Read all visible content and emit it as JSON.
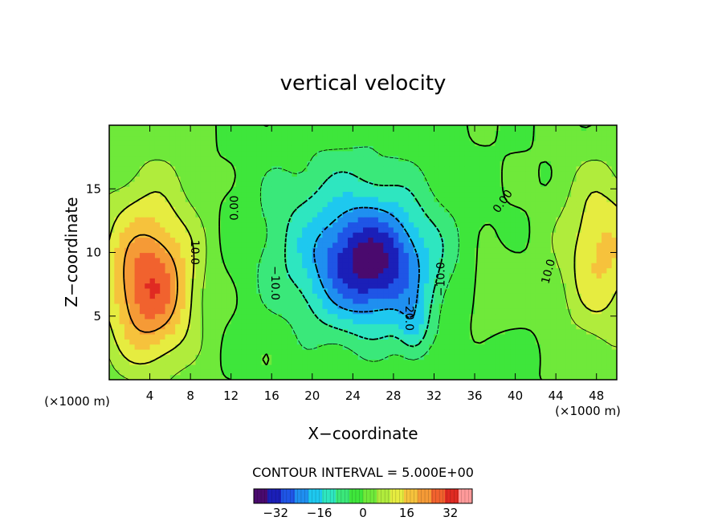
{
  "chart_data": {
    "type": "heatmap",
    "title": "vertical velocity",
    "xlabel": "X−coordinate",
    "ylabel": "Z−coordinate",
    "x_unit_left": "(×1000 m)",
    "x_unit_right": "(×1000 m)",
    "xlim": [
      0,
      50
    ],
    "ylim": [
      0,
      20
    ],
    "x_ticks": [
      4,
      8,
      12,
      16,
      20,
      24,
      28,
      32,
      36,
      40,
      44,
      48
    ],
    "x_tick_labels": [
      "4",
      "8",
      "12",
      "16",
      "20",
      "24",
      "28",
      "32",
      "36",
      "40",
      "44",
      "48"
    ],
    "y_ticks": [
      5,
      10,
      15
    ],
    "y_tick_labels": [
      "5",
      "10",
      "15"
    ],
    "contour_interval_text": "CONTOUR INTERVAL = 5.000E+00",
    "colorbar": {
      "range": [
        -40,
        40
      ],
      "ticks": [
        -32,
        -16,
        0,
        16,
        32
      ],
      "tick_labels": [
        "−32",
        "−16",
        "0",
        "16",
        "32"
      ],
      "colors": [
        "#4a0a6e",
        "#1b1fb8",
        "#1f55e6",
        "#1f8ff0",
        "#1ec8ef",
        "#2ee6c0",
        "#3ae87a",
        "#3ee63b",
        "#6fe93a",
        "#b0ec3c",
        "#e6ec40",
        "#f6c23c",
        "#f59a36",
        "#f1622e",
        "#e02a22",
        "#ff9a9a"
      ]
    },
    "field_features": [
      {
        "x": 4,
        "z": 7.0,
        "value": 22,
        "sx": 4.0,
        "sz": 5.5
      },
      {
        "x": 4,
        "z": 10.0,
        "value": 9,
        "sx": 5.5,
        "sz": 8.0
      },
      {
        "x": 26,
        "z": 9.0,
        "value": -28,
        "sx": 5.5,
        "sz": 4.5
      },
      {
        "x": 23,
        "z": 11.0,
        "value": -12,
        "sx": 9.0,
        "sz": 7.5
      },
      {
        "x": 30,
        "z": 4.0,
        "value": -10,
        "sx": 1.5,
        "sz": 2.5
      },
      {
        "x": 48.5,
        "z": 10.0,
        "value": 16,
        "sx": 4.0,
        "sz": 6.5
      },
      {
        "x": 38,
        "z": 7.0,
        "value": 5,
        "sx": 3.0,
        "sz": 3.0
      },
      {
        "x": 39,
        "z": 2.0,
        "value": -4,
        "sx": 3.0,
        "sz": 1.5
      }
    ],
    "contour_labels": [
      {
        "x": 12.4,
        "z": 13.5,
        "text": "0.00",
        "angle": -90
      },
      {
        "x": 8.4,
        "z": 10.0,
        "text": "10.0",
        "angle": 90
      },
      {
        "x": 16.3,
        "z": 7.6,
        "text": "−10.0",
        "angle": 90
      },
      {
        "x": 32.7,
        "z": 7.9,
        "text": "−10.0",
        "angle": -90
      },
      {
        "x": 29.5,
        "z": 5.2,
        "text": "−20.0",
        "angle": 90
      },
      {
        "x": 38.8,
        "z": 14.0,
        "text": "0.00",
        "angle": -55
      },
      {
        "x": 43.3,
        "z": 8.5,
        "text": "10.0",
        "angle": -75
      }
    ]
  }
}
